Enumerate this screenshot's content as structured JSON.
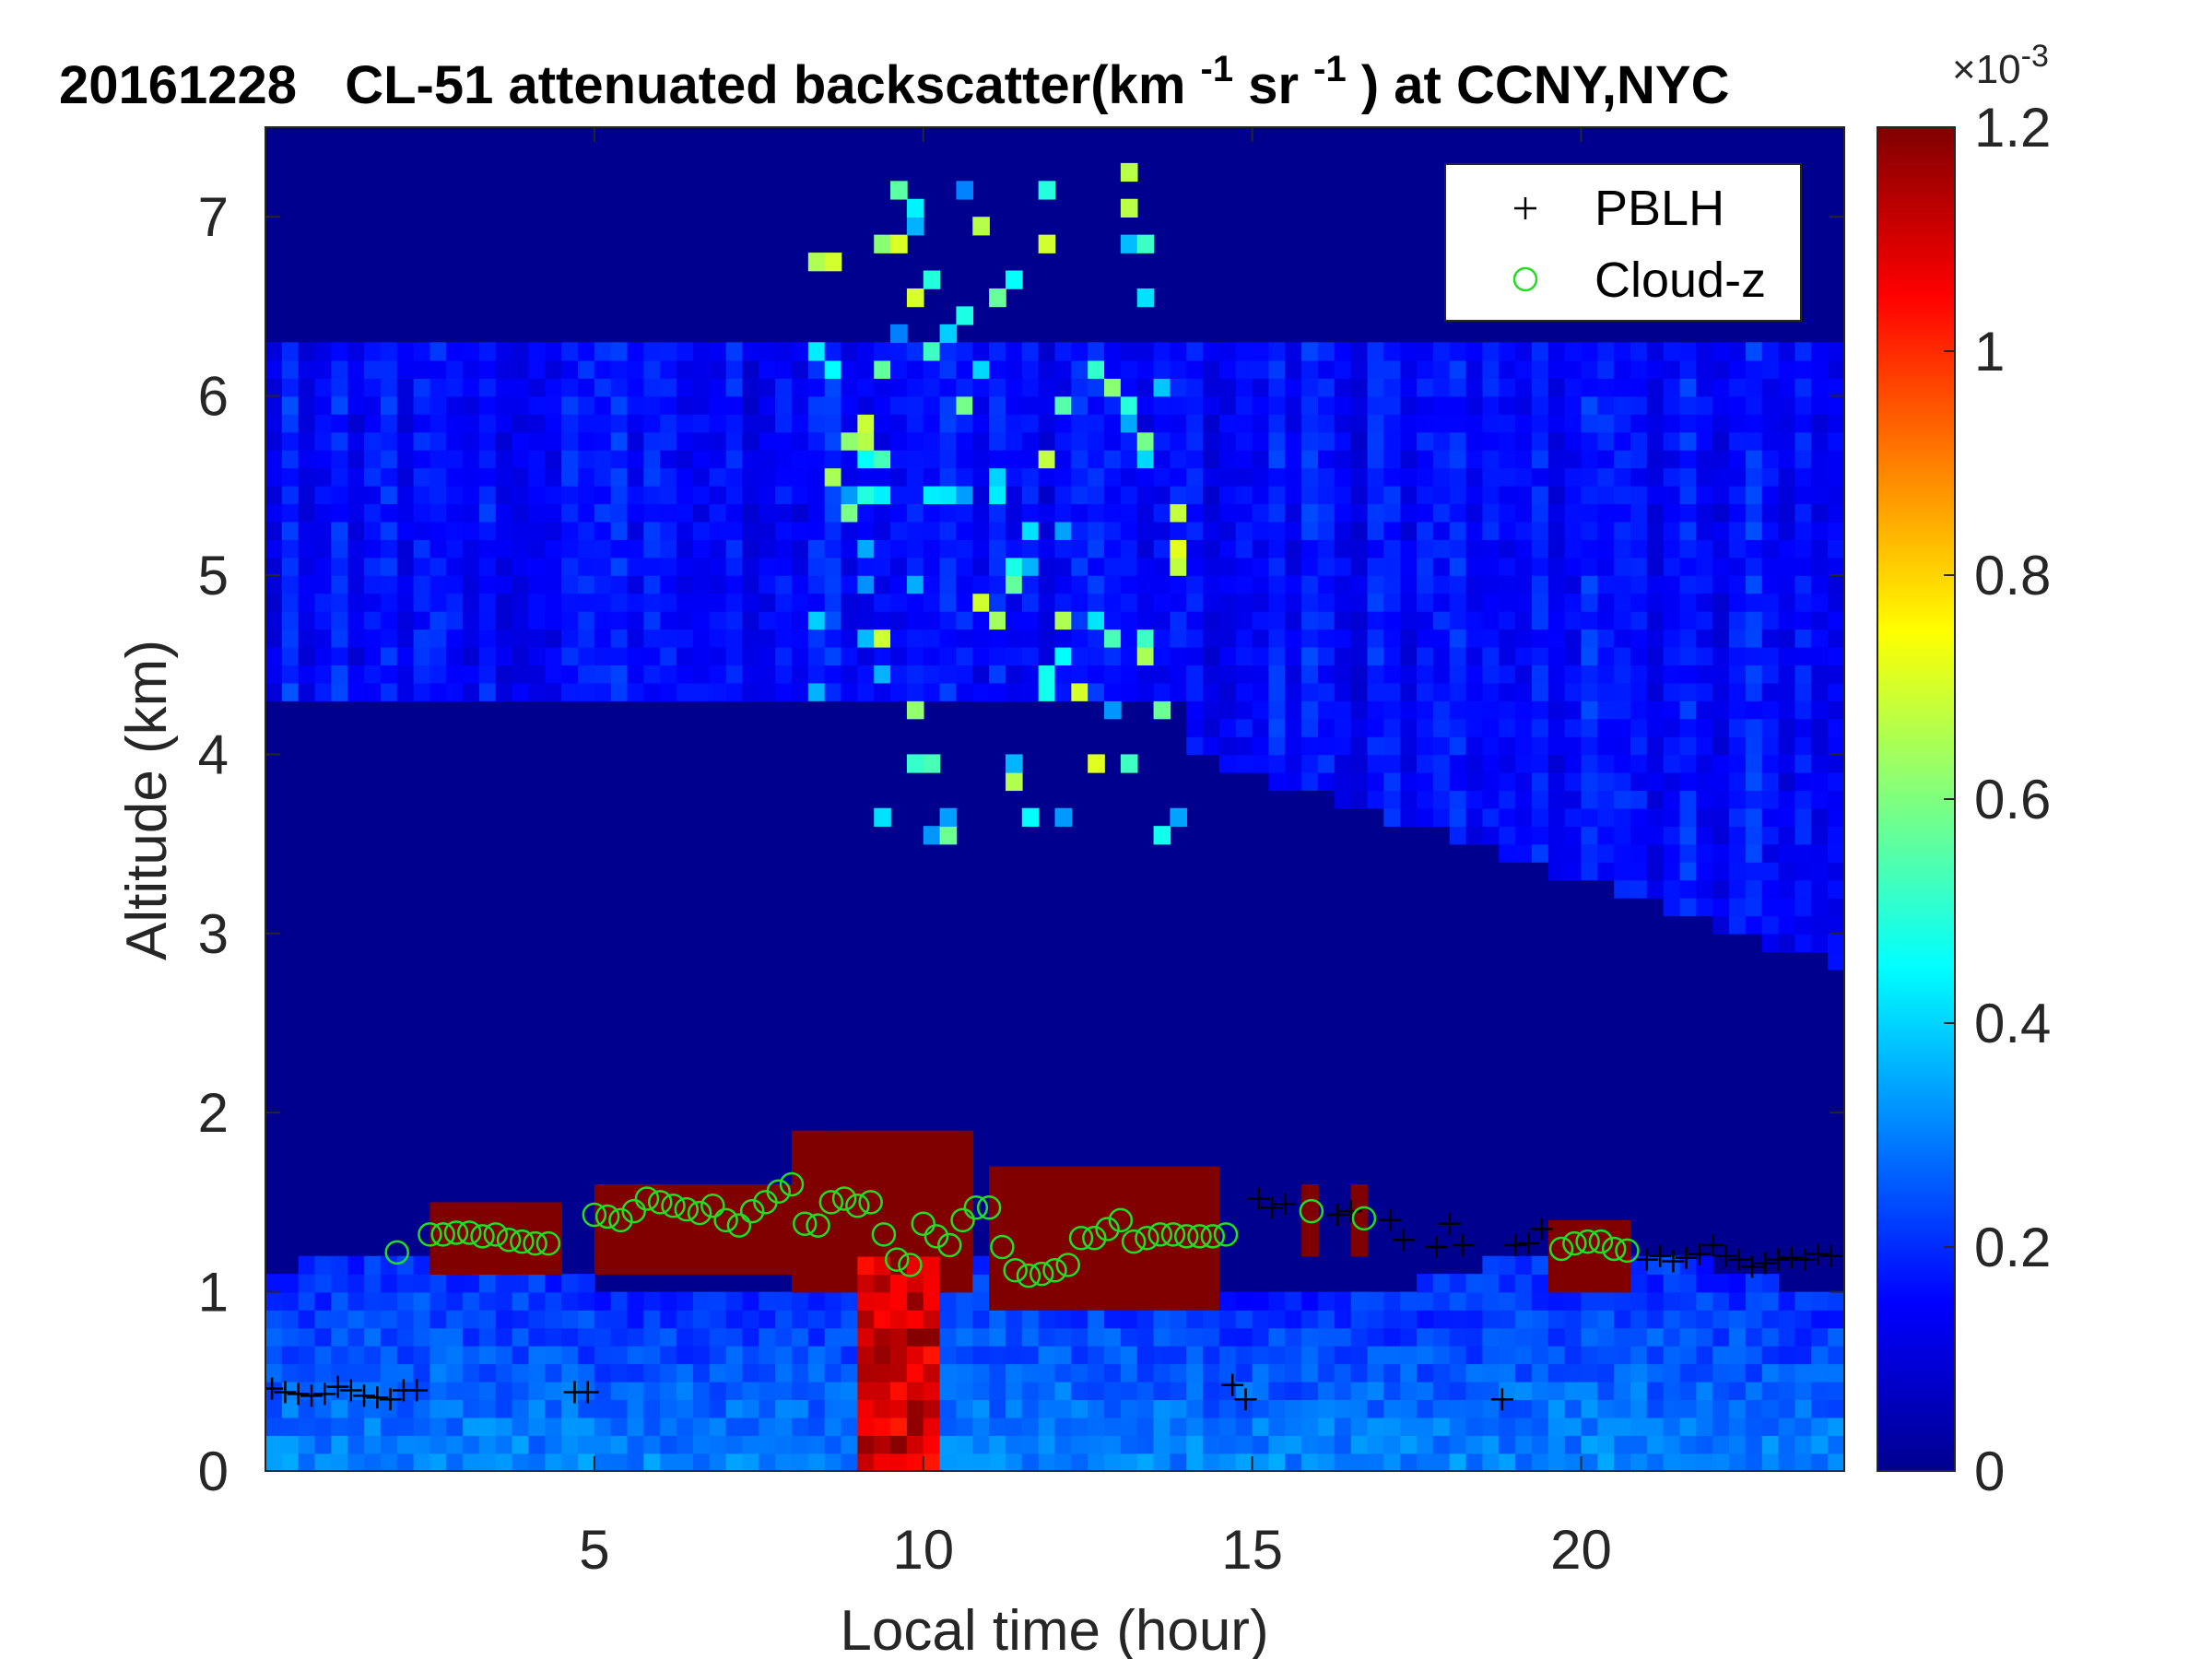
{
  "chart_data": {
    "type": "heatmap",
    "title": {
      "date": "20161228",
      "instrument": "CL-51 attenuated backscatter(km",
      "sup1": "-1",
      "mid": "sr",
      "sup2": "-1",
      "tail": ") at CCNY,NYC"
    },
    "xlabel": "Local time (hour)",
    "ylabel": "Altitude (km)",
    "xlim": [
      0,
      24
    ],
    "ylim": [
      0,
      7.5
    ],
    "xticks": [
      5,
      10,
      15,
      20
    ],
    "yticks": [
      0,
      1,
      2,
      3,
      4,
      5,
      6,
      7
    ],
    "colorbar": {
      "colormap": "jet",
      "range": [
        0,
        0.0012
      ],
      "ticks": [
        "0",
        "0.2",
        "0.4",
        "0.6",
        "0.8",
        "1",
        "1.2"
      ],
      "exponent_label": "×10",
      "exponent_sup": "-3"
    },
    "legend": {
      "position": "top-right",
      "entries": [
        {
          "name": "PBLH",
          "marker": "plus",
          "color": "#000000"
        },
        {
          "name": "Cloud-z",
          "marker": "circle",
          "color": "#22dd22"
        }
      ]
    },
    "series": [
      {
        "name": "PBLH",
        "x": [
          0.1,
          0.3,
          0.5,
          0.7,
          0.9,
          1.1,
          1.3,
          1.5,
          1.7,
          1.9,
          2.1,
          2.3,
          4.7,
          4.9,
          14.7,
          14.9,
          15.1,
          15.3,
          15.5,
          16.3,
          16.5,
          17.1,
          17.3,
          17.8,
          18.0,
          18.2,
          18.8,
          19.0,
          19.2,
          19.4,
          21.0,
          21.2,
          21.4,
          21.6,
          21.8,
          22.0,
          22.2,
          22.4,
          22.6,
          22.8,
          23.0,
          23.2,
          23.4,
          23.6,
          23.8
        ],
        "y": [
          0.46,
          0.44,
          0.43,
          0.42,
          0.43,
          0.47,
          0.45,
          0.42,
          0.41,
          0.4,
          0.45,
          0.45,
          0.44,
          0.44,
          0.48,
          0.4,
          1.52,
          1.47,
          1.49,
          1.43,
          1.45,
          1.4,
          1.29,
          1.25,
          1.38,
          1.26,
          0.4,
          1.26,
          1.27,
          1.35,
          1.18,
          1.2,
          1.17,
          1.19,
          1.21,
          1.26,
          1.2,
          1.18,
          1.14,
          1.16,
          1.18,
          1.19,
          1.18,
          1.21,
          1.2
        ]
      },
      {
        "name": "Cloud-z",
        "x": [
          2.0,
          2.5,
          2.7,
          2.9,
          3.1,
          3.3,
          3.5,
          3.7,
          3.9,
          4.1,
          4.3,
          5.0,
          5.2,
          5.4,
          5.6,
          5.8,
          6.0,
          6.2,
          6.4,
          6.6,
          6.8,
          7.0,
          7.2,
          7.4,
          7.6,
          7.8,
          8.0,
          8.2,
          8.4,
          8.6,
          8.8,
          9.0,
          9.2,
          9.4,
          9.6,
          9.8,
          10.0,
          10.2,
          10.4,
          10.6,
          10.8,
          11.0,
          11.2,
          11.4,
          11.6,
          11.8,
          12.0,
          12.2,
          12.4,
          12.6,
          12.8,
          13.0,
          13.2,
          13.4,
          13.6,
          13.8,
          14.0,
          14.2,
          14.4,
          14.6,
          15.9,
          16.7,
          19.7,
          19.9,
          20.1,
          20.3,
          20.5,
          20.7
        ],
        "y": [
          1.22,
          1.32,
          1.32,
          1.33,
          1.33,
          1.31,
          1.32,
          1.29,
          1.28,
          1.27,
          1.27,
          1.43,
          1.42,
          1.4,
          1.45,
          1.52,
          1.5,
          1.48,
          1.46,
          1.44,
          1.48,
          1.4,
          1.37,
          1.45,
          1.5,
          1.56,
          1.6,
          1.38,
          1.37,
          1.5,
          1.52,
          1.48,
          1.5,
          1.32,
          1.18,
          1.15,
          1.38,
          1.31,
          1.26,
          1.4,
          1.47,
          1.47,
          1.25,
          1.12,
          1.09,
          1.1,
          1.12,
          1.15,
          1.3,
          1.3,
          1.35,
          1.4,
          1.28,
          1.3,
          1.32,
          1.32,
          1.31,
          1.31,
          1.31,
          1.32,
          1.45,
          1.41,
          1.24,
          1.27,
          1.28,
          1.28,
          1.24,
          1.23
        ]
      }
    ],
    "field_description": {
      "background": 1e-05,
      "upper_aerosol_layer_km": [
        4.3,
        6.3
      ],
      "boundary_layer_top_km": [
        1.1,
        1.4
      ],
      "cloud_layer": {
        "x_segments": [
          [
            2.5,
            4.6
          ],
          [
            4.9,
            8.0
          ],
          [
            8.0,
            10.8
          ],
          [
            11.0,
            14.6
          ],
          [
            15.8,
            16.0
          ],
          [
            16.6,
            16.8
          ],
          [
            19.6,
            20.8
          ]
        ],
        "base_km": [
          1.1,
          1.1,
          1.05,
          0.95,
          1.25,
          1.22,
          1.05
        ],
        "top_km": [
          1.5,
          1.65,
          1.85,
          1.68,
          1.6,
          1.6,
          1.45
        ]
      },
      "precip_streaks_x": [
        9.4,
        10.0
      ]
    }
  }
}
